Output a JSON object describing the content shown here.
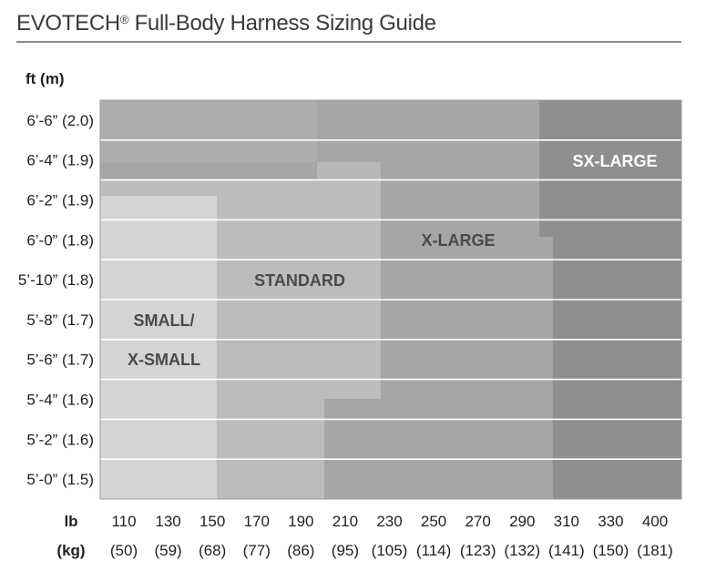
{
  "title": {
    "brand": "EVOTECH",
    "mark": "®",
    "text": " Full-Body Harness Sizing Guide"
  },
  "chart_data": {
    "type": "heatmap",
    "title": "EVOTECH® Full-Body Harness Sizing Guide",
    "y_unit_label": "ft  (m)",
    "x_unit_label": "lb",
    "x_unit_label_2": "(kg)",
    "y_ticks": [
      "6’-6” (2.0)",
      "6’-4” (1.9)",
      "6’-2” (1.9)",
      "6’-0” (1.8)",
      "5’-10” (1.8)",
      "5’-8” (1.7)",
      "5’-6” (1.7)",
      "5’-4” (1.6)",
      "5’-2” (1.6)",
      "5’-0” (1.5)"
    ],
    "x_ticks_lb": [
      "110",
      "130",
      "150",
      "170",
      "190",
      "210",
      "230",
      "250",
      "270",
      "290",
      "310",
      "330",
      "400"
    ],
    "x_ticks_kg": [
      "(50)",
      "(59)",
      "(68)",
      "(77)",
      "(86)",
      "(95)",
      "(105)",
      "(114)",
      "(123)",
      "(132)",
      "(141)",
      "(150)",
      "(181)"
    ],
    "grid": true,
    "zones": [
      {
        "label_lines": [
          "SMALL/",
          "X-SMALL"
        ],
        "color": "#d4d4d4",
        "text_color": "#4a4a4a",
        "weight_lb": [
          110,
          150
        ],
        "height_ft": "5'-0\" to 6'-1\""
      },
      {
        "label_lines": [
          "STANDARD"
        ],
        "color": "#bcbcbc",
        "text_color": "#4a4a4a",
        "weight_lb": [
          110,
          230
        ],
        "height_ft": "5'-0\" to 6'-2\""
      },
      {
        "label_lines": [
          "X-LARGE"
        ],
        "color": "#a6a6a6",
        "text_color": "#4a4a4a",
        "weight_lb": [
          190,
          310
        ],
        "height_ft": "5'-0\" to 6'-6\""
      },
      {
        "label_lines": [
          "SX-LARGE"
        ],
        "color": "#8f8f8f",
        "text_color": "#ffffff",
        "weight_lb": [
          290,
          400
        ],
        "height_ft": "5'-0\" to 6'-6\""
      }
    ]
  }
}
